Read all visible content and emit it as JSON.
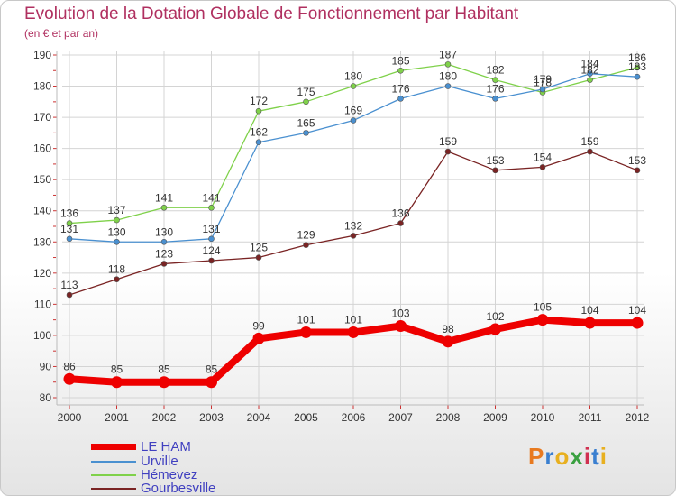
{
  "chart_data": {
    "type": "line",
    "title": "Evolution de la Dotation Globale de Fonctionnement par Habitant",
    "subtitle": "(en € et par an)",
    "xlabel": "",
    "ylabel": "",
    "categories": [
      "2000",
      "2001",
      "2002",
      "2003",
      "2004",
      "2005",
      "2006",
      "2007",
      "2008",
      "2009",
      "2010",
      "2011",
      "2012"
    ],
    "ylim": [
      80,
      190
    ],
    "yticks": [
      80,
      90,
      100,
      110,
      120,
      130,
      140,
      150,
      160,
      170,
      180,
      190
    ],
    "grid": true,
    "legend_position": "bottom-left",
    "series": [
      {
        "name": "Hémevez",
        "color": "#7fd14a",
        "values": [
          136,
          137,
          141,
          141,
          172,
          175,
          180,
          185,
          187,
          182,
          178,
          182,
          186
        ]
      },
      {
        "name": "Urville",
        "color": "#4a90d0",
        "values": [
          131,
          130,
          130,
          131,
          162,
          165,
          169,
          176,
          180,
          176,
          179,
          184,
          183
        ]
      },
      {
        "name": "Gourbesville",
        "color": "#7a2424",
        "values": [
          113,
          118,
          123,
          124,
          125,
          129,
          132,
          136,
          159,
          153,
          154,
          159,
          153
        ]
      },
      {
        "name": "LE HAM",
        "color": "#ee0000",
        "values": [
          86,
          85,
          85,
          85,
          99,
          101,
          101,
          103,
          98,
          102,
          105,
          104,
          104
        ]
      }
    ]
  },
  "legend": {
    "items": [
      {
        "label": "LE HAM",
        "color": "#ee0000"
      },
      {
        "label": "Urville",
        "color": "#4a90d0"
      },
      {
        "label": "Hémevez",
        "color": "#7fd14a"
      },
      {
        "label": "Gourbesville",
        "color": "#7a2424"
      }
    ]
  },
  "brand": {
    "letters": [
      "P",
      "r",
      "o",
      "x",
      "i",
      "t",
      "i"
    ],
    "colors": [
      "#e87a20",
      "#3a7fd0",
      "#e8b020",
      "#3aa040",
      "#d03050",
      "#3a7fd0",
      "#e8b020"
    ]
  }
}
